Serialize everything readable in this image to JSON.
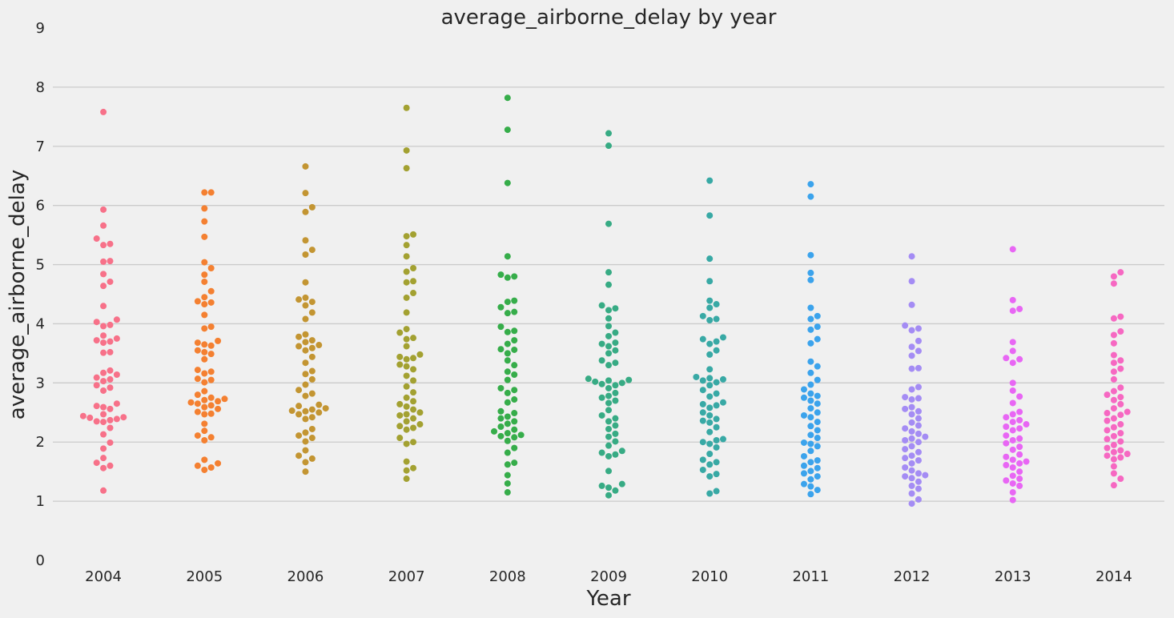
{
  "chart_data": {
    "type": "scatter",
    "subtype": "swarm",
    "title": "average_airborne_delay by year",
    "xlabel": "Year",
    "ylabel": "average_airborne_delay",
    "ylim": [
      0,
      9
    ],
    "yticks": [
      0,
      1,
      2,
      3,
      4,
      5,
      6,
      7,
      8,
      9
    ],
    "grid": true,
    "legend": "none",
    "categories": [
      "2004",
      "2005",
      "2006",
      "2007",
      "2008",
      "2009",
      "2010",
      "2011",
      "2012",
      "2013",
      "2014"
    ],
    "series": [
      {
        "category": "2004",
        "color": "#f77189",
        "values": [
          7.58,
          5.93,
          5.66,
          5.44,
          5.35,
          5.33,
          5.06,
          5.05,
          4.84,
          4.71,
          4.64,
          4.3,
          4.07,
          4.03,
          3.98,
          3.96,
          3.8,
          3.75,
          3.72,
          3.7,
          3.68,
          3.52,
          3.51,
          3.21,
          3.17,
          3.14,
          3.09,
          3.06,
          3.03,
          2.96,
          2.92,
          2.87,
          2.65,
          2.61,
          2.59,
          2.56,
          2.47,
          2.44,
          2.42,
          2.41,
          2.39,
          2.37,
          2.35,
          2.34,
          2.24,
          2.13,
          1.99,
          1.89,
          1.73,
          1.65,
          1.6,
          1.56,
          1.18
        ]
      },
      {
        "category": "2005",
        "color": "#f48031",
        "values": [
          6.22,
          6.22,
          5.95,
          5.73,
          5.47,
          5.04,
          4.94,
          4.83,
          4.71,
          4.55,
          4.45,
          4.38,
          4.36,
          4.33,
          4.15,
          3.95,
          3.92,
          3.71,
          3.68,
          3.65,
          3.63,
          3.55,
          3.52,
          3.49,
          3.4,
          3.22,
          3.19,
          3.16,
          3.07,
          3.05,
          3.01,
          2.86,
          2.8,
          2.75,
          2.73,
          2.71,
          2.69,
          2.67,
          2.65,
          2.62,
          2.59,
          2.56,
          2.51,
          2.48,
          2.47,
          2.31,
          2.19,
          2.11,
          2.08,
          2.03,
          1.7,
          1.64,
          1.6,
          1.57,
          1.53
        ]
      },
      {
        "category": "2006",
        "color": "#c39532",
        "values": [
          6.66,
          6.21,
          5.97,
          5.89,
          5.41,
          5.25,
          5.17,
          4.7,
          4.44,
          4.41,
          4.37,
          4.31,
          4.19,
          4.08,
          3.82,
          3.78,
          3.72,
          3.69,
          3.64,
          3.62,
          3.59,
          3.55,
          3.44,
          3.34,
          3.2,
          3.15,
          3.06,
          2.97,
          2.88,
          2.82,
          2.78,
          2.63,
          2.61,
          2.57,
          2.55,
          2.53,
          2.52,
          2.5,
          2.47,
          2.42,
          2.39,
          2.22,
          2.16,
          2.11,
          2.07,
          2.01,
          1.86,
          1.77,
          1.72,
          1.66,
          1.5
        ]
      },
      {
        "category": "2007",
        "color": "#a3a131",
        "values": [
          7.65,
          6.93,
          6.63,
          5.51,
          5.48,
          5.33,
          5.14,
          4.94,
          4.88,
          4.72,
          4.7,
          4.52,
          4.44,
          4.19,
          3.91,
          3.85,
          3.76,
          3.74,
          3.62,
          3.48,
          3.44,
          3.42,
          3.4,
          3.31,
          3.28,
          3.23,
          3.12,
          3.04,
          2.94,
          2.84,
          2.75,
          2.69,
          2.64,
          2.6,
          2.55,
          2.5,
          2.47,
          2.45,
          2.4,
          2.35,
          2.3,
          2.27,
          2.24,
          2.21,
          2.07,
          2.0,
          1.97,
          1.67,
          1.56,
          1.52,
          1.38
        ]
      },
      {
        "category": "2008",
        "color": "#36ad4a",
        "values": [
          7.82,
          7.28,
          6.38,
          5.14,
          4.83,
          4.8,
          4.78,
          4.39,
          4.37,
          4.28,
          4.2,
          4.18,
          3.95,
          3.88,
          3.86,
          3.72,
          3.66,
          3.57,
          3.56,
          3.5,
          3.38,
          3.3,
          3.19,
          3.14,
          3.05,
          2.91,
          2.88,
          2.83,
          2.72,
          2.67,
          2.52,
          2.49,
          2.43,
          2.4,
          2.35,
          2.31,
          2.26,
          2.21,
          2.18,
          2.15,
          2.12,
          2.1,
          2.08,
          2.02,
          1.9,
          1.82,
          1.65,
          1.62,
          1.44,
          1.3,
          1.15
        ]
      },
      {
        "category": "2009",
        "color": "#37ab84",
        "values": [
          7.22,
          7.01,
          5.69,
          4.87,
          4.66,
          4.31,
          4.26,
          4.23,
          4.09,
          3.96,
          3.85,
          3.79,
          3.68,
          3.66,
          3.62,
          3.55,
          3.5,
          3.38,
          3.34,
          3.3,
          3.07,
          3.05,
          3.04,
          3.02,
          3.0,
          2.98,
          2.96,
          2.91,
          2.83,
          2.78,
          2.75,
          2.7,
          2.66,
          2.54,
          2.45,
          2.4,
          2.35,
          2.28,
          2.22,
          2.14,
          2.09,
          2.01,
          1.94,
          1.85,
          1.82,
          1.79,
          1.76,
          1.51,
          1.29,
          1.26,
          1.23,
          1.18,
          1.1
        ]
      },
      {
        "category": "2010",
        "color": "#38a9a5",
        "values": [
          6.42,
          5.83,
          5.1,
          4.72,
          4.39,
          4.33,
          4.27,
          4.13,
          4.08,
          4.06,
          3.77,
          3.74,
          3.7,
          3.66,
          3.55,
          3.48,
          3.23,
          3.1,
          3.08,
          3.06,
          3.04,
          3.01,
          2.96,
          2.88,
          2.82,
          2.77,
          2.67,
          2.64,
          2.62,
          2.58,
          2.5,
          2.45,
          2.39,
          2.36,
          2.33,
          2.25,
          2.17,
          2.05,
          2.03,
          2.0,
          1.97,
          1.91,
          1.8,
          1.7,
          1.66,
          1.62,
          1.53,
          1.46,
          1.42,
          1.17,
          1.13
        ]
      },
      {
        "category": "2011",
        "color": "#3ba3ec",
        "values": [
          6.36,
          6.15,
          5.16,
          4.86,
          4.74,
          4.27,
          4.13,
          4.08,
          3.95,
          3.9,
          3.74,
          3.67,
          3.36,
          3.28,
          3.17,
          3.05,
          2.97,
          2.89,
          2.82,
          2.78,
          2.75,
          2.7,
          2.65,
          2.57,
          2.5,
          2.45,
          2.42,
          2.34,
          2.27,
          2.2,
          2.12,
          2.07,
          1.99,
          1.97,
          1.93,
          1.85,
          1.76,
          1.69,
          1.66,
          1.6,
          1.56,
          1.51,
          1.47,
          1.42,
          1.37,
          1.29,
          1.25,
          1.19,
          1.12
        ]
      },
      {
        "category": "2012",
        "color": "#a48cf4",
        "values": [
          5.14,
          4.72,
          4.32,
          3.97,
          3.92,
          3.89,
          3.71,
          3.61,
          3.54,
          3.46,
          3.25,
          3.24,
          2.93,
          2.89,
          2.76,
          2.74,
          2.72,
          2.59,
          2.56,
          2.52,
          2.47,
          2.4,
          2.33,
          2.28,
          2.23,
          2.18,
          2.14,
          2.09,
          2.06,
          2.03,
          2.0,
          1.93,
          1.88,
          1.83,
          1.77,
          1.73,
          1.69,
          1.64,
          1.57,
          1.52,
          1.47,
          1.44,
          1.42,
          1.39,
          1.33,
          1.26,
          1.21,
          1.13,
          1.03,
          0.96
        ]
      },
      {
        "category": "2013",
        "color": "#e866f4",
        "values": [
          5.26,
          4.4,
          4.25,
          4.22,
          3.69,
          3.54,
          3.42,
          3.4,
          3.34,
          3.0,
          2.87,
          2.77,
          2.66,
          2.51,
          2.47,
          2.42,
          2.37,
          2.34,
          2.3,
          2.26,
          2.23,
          2.2,
          2.11,
          2.06,
          2.03,
          1.98,
          1.92,
          1.87,
          1.79,
          1.75,
          1.7,
          1.67,
          1.64,
          1.61,
          1.57,
          1.5,
          1.43,
          1.38,
          1.35,
          1.3,
          1.26,
          1.15,
          1.02
        ]
      },
      {
        "category": "2014",
        "color": "#f668c2",
        "values": [
          4.87,
          4.8,
          4.68,
          4.12,
          4.09,
          3.87,
          3.81,
          3.67,
          3.47,
          3.38,
          3.34,
          3.24,
          3.19,
          3.06,
          2.92,
          2.86,
          2.8,
          2.76,
          2.71,
          2.64,
          2.57,
          2.51,
          2.49,
          2.46,
          2.4,
          2.36,
          2.3,
          2.25,
          2.2,
          2.15,
          2.1,
          2.05,
          2.01,
          1.95,
          1.9,
          1.86,
          1.83,
          1.8,
          1.77,
          1.74,
          1.71,
          1.59,
          1.47,
          1.38,
          1.27
        ]
      }
    ]
  }
}
